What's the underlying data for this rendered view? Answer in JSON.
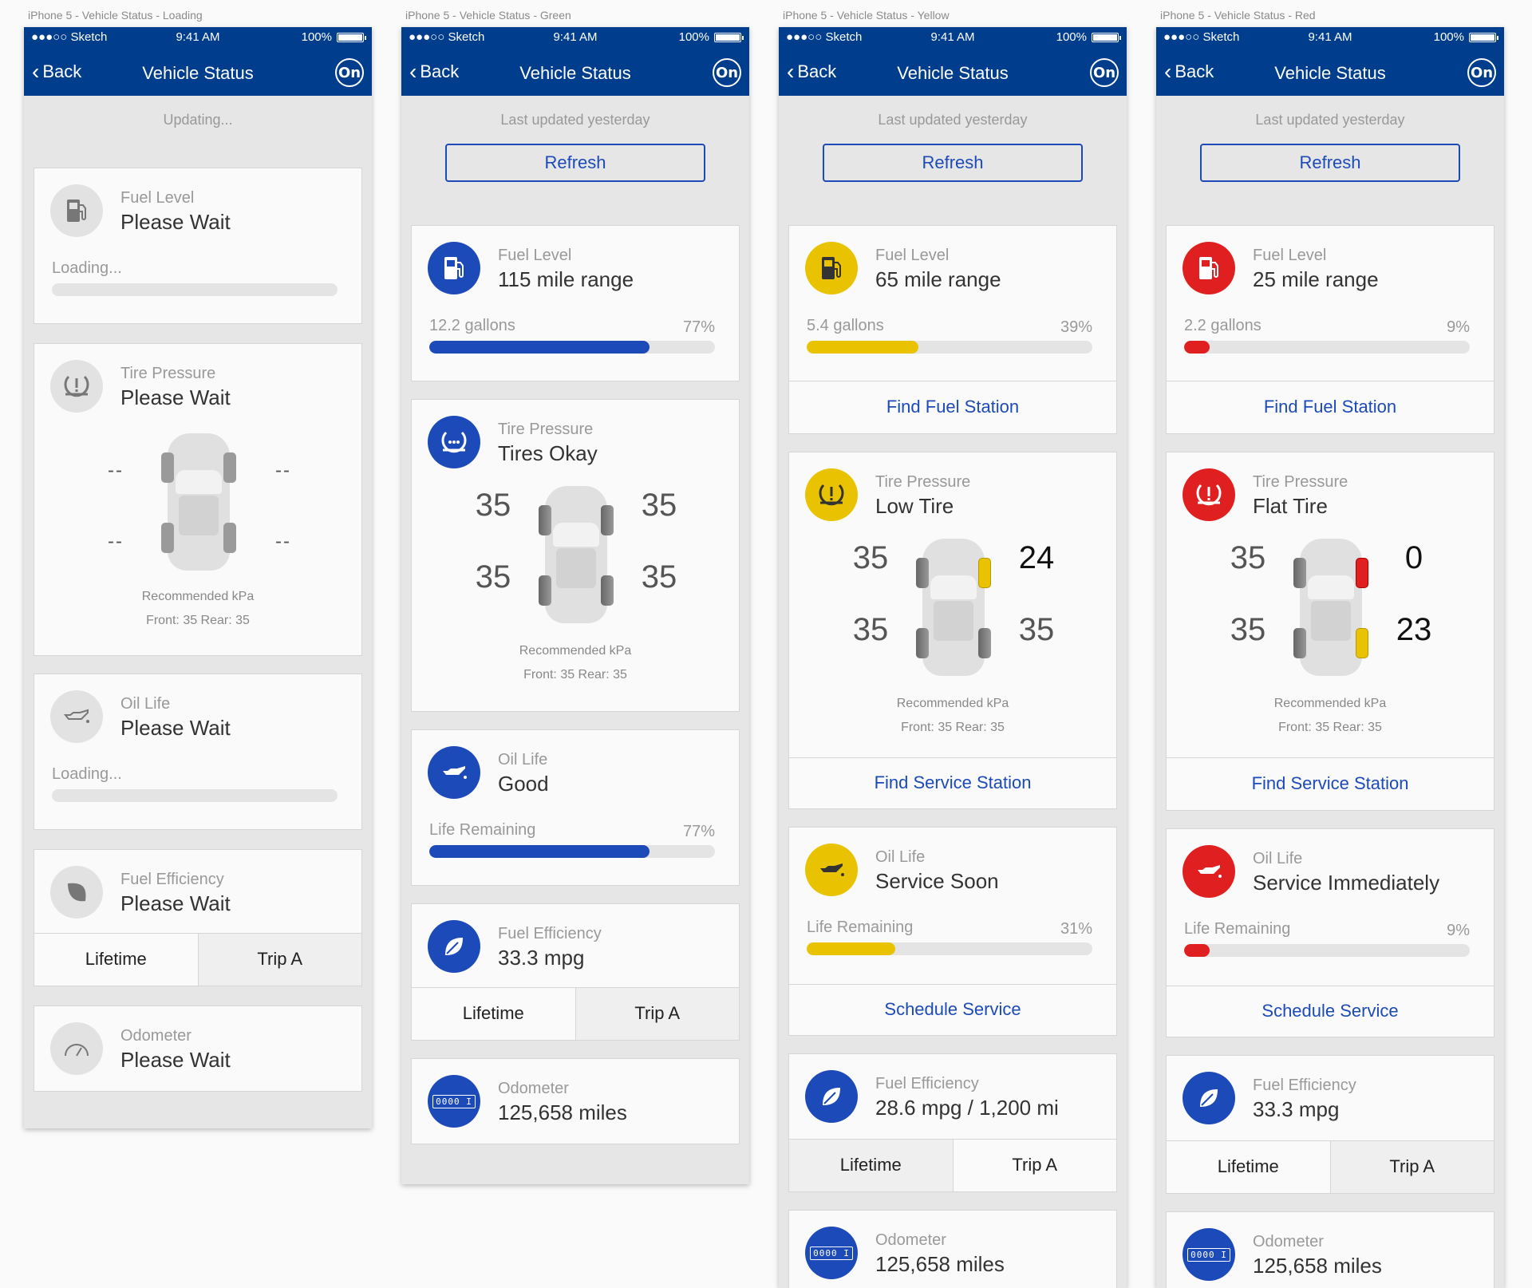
{
  "common": {
    "carrier": "●●●○○ Sketch",
    "time": "9:41 AM",
    "battery": "100%",
    "back": "Back",
    "nav_title": "Vehicle Status",
    "onstar_logo": "On",
    "accent_color": "#003e8d",
    "blue": "#1c4ab8",
    "yellow": "#e9c302",
    "red": "#e02020"
  },
  "loading": {
    "artboard_title": "iPhone 5 - Vehicle Status - Loading",
    "status": "Updating...",
    "fuel": {
      "label": "Fuel Level",
      "value": "Please Wait",
      "sub": "Loading..."
    },
    "tire": {
      "label": "Tire Pressure",
      "value": "Please Wait",
      "fl": "--",
      "fr": "--",
      "rl": "--",
      "rr": "--",
      "rec_title": "Recommended kPa",
      "rec_values": "Front: 35  Rear: 35"
    },
    "oil": {
      "label": "Oil Life",
      "value": "Please Wait",
      "sub": "Loading..."
    },
    "efficiency": {
      "label": "Fuel Efficiency",
      "value": "Please Wait",
      "tab_lifetime": "Lifetime",
      "tab_trip": "Trip A"
    },
    "odometer": {
      "label": "Odometer",
      "value": "Please Wait"
    }
  },
  "green": {
    "artboard_title": "iPhone 5 - Vehicle Status - Green",
    "status": "Last updated yesterday",
    "refresh": "Refresh",
    "fuel": {
      "label": "Fuel Level",
      "value": "115 mile range",
      "sub": "12.2 gallons",
      "percent": "77%",
      "level": 0.77
    },
    "tire": {
      "label": "Tire Pressure",
      "value": "Tires Okay",
      "fl": "35",
      "fr": "35",
      "rl": "35",
      "rr": "35",
      "rec_title": "Recommended kPa",
      "rec_values": "Front: 35  Rear: 35"
    },
    "oil": {
      "label": "Oil Life",
      "value": "Good",
      "sub": "Life Remaining",
      "percent": "77%",
      "level": 0.77
    },
    "efficiency": {
      "label": "Fuel Efficiency",
      "value": "33.3 mpg",
      "tab_lifetime": "Lifetime",
      "tab_trip": "Trip A"
    },
    "odometer": {
      "label": "Odometer",
      "value": "125,658 miles",
      "icon_text": "0000 I"
    }
  },
  "yellow": {
    "artboard_title": "iPhone 5 - Vehicle Status - Yellow",
    "status": "Last updated yesterday",
    "refresh": "Refresh",
    "fuel": {
      "label": "Fuel Level",
      "value": "65 mile range",
      "sub": "5.4 gallons",
      "percent": "39%",
      "level": 0.39,
      "action": "Find Fuel Station"
    },
    "tire": {
      "label": "Tire Pressure",
      "value": "Low Tire",
      "fl": "35",
      "fr": "24",
      "rl": "35",
      "rr": "35",
      "rec_title": "Recommended kPa",
      "rec_values": "Front: 35  Rear: 35",
      "action": "Find Service Station"
    },
    "oil": {
      "label": "Oil Life",
      "value": "Service Soon",
      "sub": "Life Remaining",
      "percent": "31%",
      "level": 0.31,
      "action": "Schedule Service"
    },
    "efficiency": {
      "label": "Fuel Efficiency",
      "value": "28.6 mpg / 1,200 mi",
      "tab_lifetime": "Lifetime",
      "tab_trip": "Trip A"
    },
    "odometer": {
      "label": "Odometer",
      "value": "125,658 miles",
      "icon_text": "0000 I"
    }
  },
  "red": {
    "artboard_title": "iPhone 5 - Vehicle Status - Red",
    "status": "Last updated yesterday",
    "refresh": "Refresh",
    "fuel": {
      "label": "Fuel Level",
      "value": "25 mile range",
      "sub": "2.2 gallons",
      "percent": "9%",
      "level": 0.09,
      "action": "Find Fuel Station"
    },
    "tire": {
      "label": "Tire Pressure",
      "value": "Flat Tire",
      "fl": "35",
      "fr": "0",
      "rl": "35",
      "rr": "23",
      "rec_title": "Recommended kPa",
      "rec_values": "Front: 35  Rear: 35",
      "action": "Find Service Station"
    },
    "oil": {
      "label": "Oil Life",
      "value": "Service Immediately",
      "sub": "Life Remaining",
      "percent": "9%",
      "level": 0.09,
      "action": "Schedule Service"
    },
    "efficiency": {
      "label": "Fuel Efficiency",
      "value": "33.3 mpg",
      "tab_lifetime": "Lifetime",
      "tab_trip": "Trip A"
    },
    "odometer": {
      "label": "Odometer",
      "value": "125,658 miles",
      "icon_text": "0000 I"
    }
  }
}
